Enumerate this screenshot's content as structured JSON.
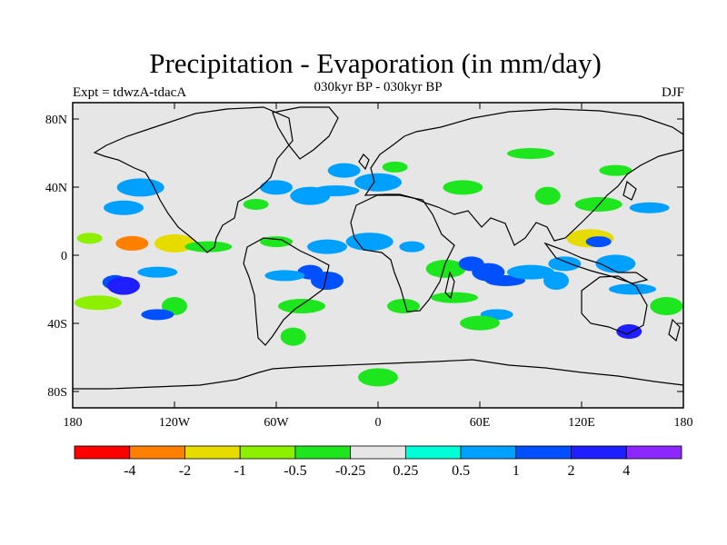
{
  "title": "Precipitation - Evaporation (in mm/day)",
  "subtitle": "030kyr BP - 030kyr BP",
  "experiment_label": "Expt = tdwzA-tdacA",
  "season_label": "DJF",
  "colors": {
    "background_ocean": "#e6e6e6",
    "land_outline": "#000000",
    "palette": [
      "#ff0000",
      "#ff8000",
      "#e6dc00",
      "#8cf000",
      "#1ee61e",
      "#e6e6e6",
      "#00ffd7",
      "#00a0ff",
      "#0050ff",
      "#1e1eff",
      "#8c28ff"
    ]
  },
  "chart_data": {
    "type": "heatmap",
    "projection": "cylindrical-equidistant",
    "lon_range": [
      -180,
      180
    ],
    "lat_range": [
      -90,
      90
    ],
    "x_ticks": [
      "180",
      "120W",
      "60W",
      "0",
      "60E",
      "120E",
      "180"
    ],
    "y_ticks": [
      "80N",
      "40N",
      "0",
      "40S",
      "80S"
    ],
    "colorbar": {
      "labels": [
        "-4",
        "-2",
        "-1",
        "-0.5",
        "-0.25",
        "0.25",
        "0.5",
        "1",
        "2",
        "4"
      ],
      "levels": [
        -4,
        -2,
        -1,
        -0.5,
        -0.25,
        0.25,
        0.5,
        1,
        2,
        4
      ],
      "colors": [
        "#ff0000",
        "#ff8000",
        "#e6dc00",
        "#8cf000",
        "#1ee61e",
        "#e6e6e6",
        "#00ffd7",
        "#00a0ff",
        "#0050ff",
        "#1e1eff",
        "#8c28ff"
      ]
    },
    "regions": [
      {
        "lon": -170,
        "lat": 10,
        "value": -1
      },
      {
        "lon": -145,
        "lat": 7,
        "value": -4
      },
      {
        "lon": -120,
        "lat": 7,
        "value": -2
      },
      {
        "lon": -100,
        "lat": 5,
        "value": -0.5
      },
      {
        "lon": -155,
        "lat": -16,
        "value": 1
      },
      {
        "lon": -150,
        "lat": -18,
        "value": 2
      },
      {
        "lon": -130,
        "lat": -10,
        "value": 0.5
      },
      {
        "lon": -165,
        "lat": -28,
        "value": -1
      },
      {
        "lon": -120,
        "lat": -30,
        "value": -0.5
      },
      {
        "lon": -130,
        "lat": -35,
        "value": 1
      },
      {
        "lon": -150,
        "lat": 28,
        "value": 0.5
      },
      {
        "lon": -140,
        "lat": 40,
        "value": 0.5
      },
      {
        "lon": -72,
        "lat": 30,
        "value": -0.5
      },
      {
        "lon": -60,
        "lat": 40,
        "value": 0.5
      },
      {
        "lon": -40,
        "lat": 35,
        "value": 0.5
      },
      {
        "lon": -25,
        "lat": 38,
        "value": 0.5
      },
      {
        "lon": -40,
        "lat": -10,
        "value": 1
      },
      {
        "lon": -30,
        "lat": -15,
        "value": 1
      },
      {
        "lon": -55,
        "lat": -12,
        "value": 0.5
      },
      {
        "lon": -45,
        "lat": -30,
        "value": -0.5
      },
      {
        "lon": -50,
        "lat": -48,
        "value": -0.5
      },
      {
        "lon": -60,
        "lat": 8,
        "value": -0.5
      },
      {
        "lon": -30,
        "lat": 5,
        "value": 0.5
      },
      {
        "lon": -5,
        "lat": 8,
        "value": 0.5
      },
      {
        "lon": 20,
        "lat": 5,
        "value": 0.5
      },
      {
        "lon": 15,
        "lat": -30,
        "value": -0.5
      },
      {
        "lon": 40,
        "lat": -8,
        "value": -0.5
      },
      {
        "lon": 45,
        "lat": -25,
        "value": -0.5
      },
      {
        "lon": 55,
        "lat": -5,
        "value": 1
      },
      {
        "lon": 65,
        "lat": -10,
        "value": 1
      },
      {
        "lon": 75,
        "lat": -15,
        "value": 1
      },
      {
        "lon": 90,
        "lat": -10,
        "value": 0.5
      },
      {
        "lon": 105,
        "lat": -15,
        "value": 0.5
      },
      {
        "lon": 70,
        "lat": -35,
        "value": 0.5
      },
      {
        "lon": 60,
        "lat": -40,
        "value": -0.5
      },
      {
        "lon": 125,
        "lat": 10,
        "value": -2
      },
      {
        "lon": 130,
        "lat": 8,
        "value": 1
      },
      {
        "lon": 110,
        "lat": -5,
        "value": 0.5
      },
      {
        "lon": 140,
        "lat": -5,
        "value": 0.5
      },
      {
        "lon": 150,
        "lat": -20,
        "value": 0.5
      },
      {
        "lon": 148,
        "lat": -45,
        "value": 2
      },
      {
        "lon": 170,
        "lat": -30,
        "value": -0.5
      },
      {
        "lon": 160,
        "lat": 28,
        "value": 0.5
      },
      {
        "lon": 130,
        "lat": 30,
        "value": -0.5
      },
      {
        "lon": 100,
        "lat": 35,
        "value": -0.5
      },
      {
        "lon": 140,
        "lat": 50,
        "value": -0.5
      },
      {
        "lon": 50,
        "lat": 40,
        "value": -0.5
      },
      {
        "lon": 0,
        "lat": 43,
        "value": 0.5
      },
      {
        "lon": 10,
        "lat": 52,
        "value": -0.5
      },
      {
        "lon": -20,
        "lat": 50,
        "value": 0.5
      },
      {
        "lon": 0,
        "lat": -72,
        "value": -0.5
      },
      {
        "lon": 90,
        "lat": 60,
        "value": -0.5
      }
    ]
  }
}
